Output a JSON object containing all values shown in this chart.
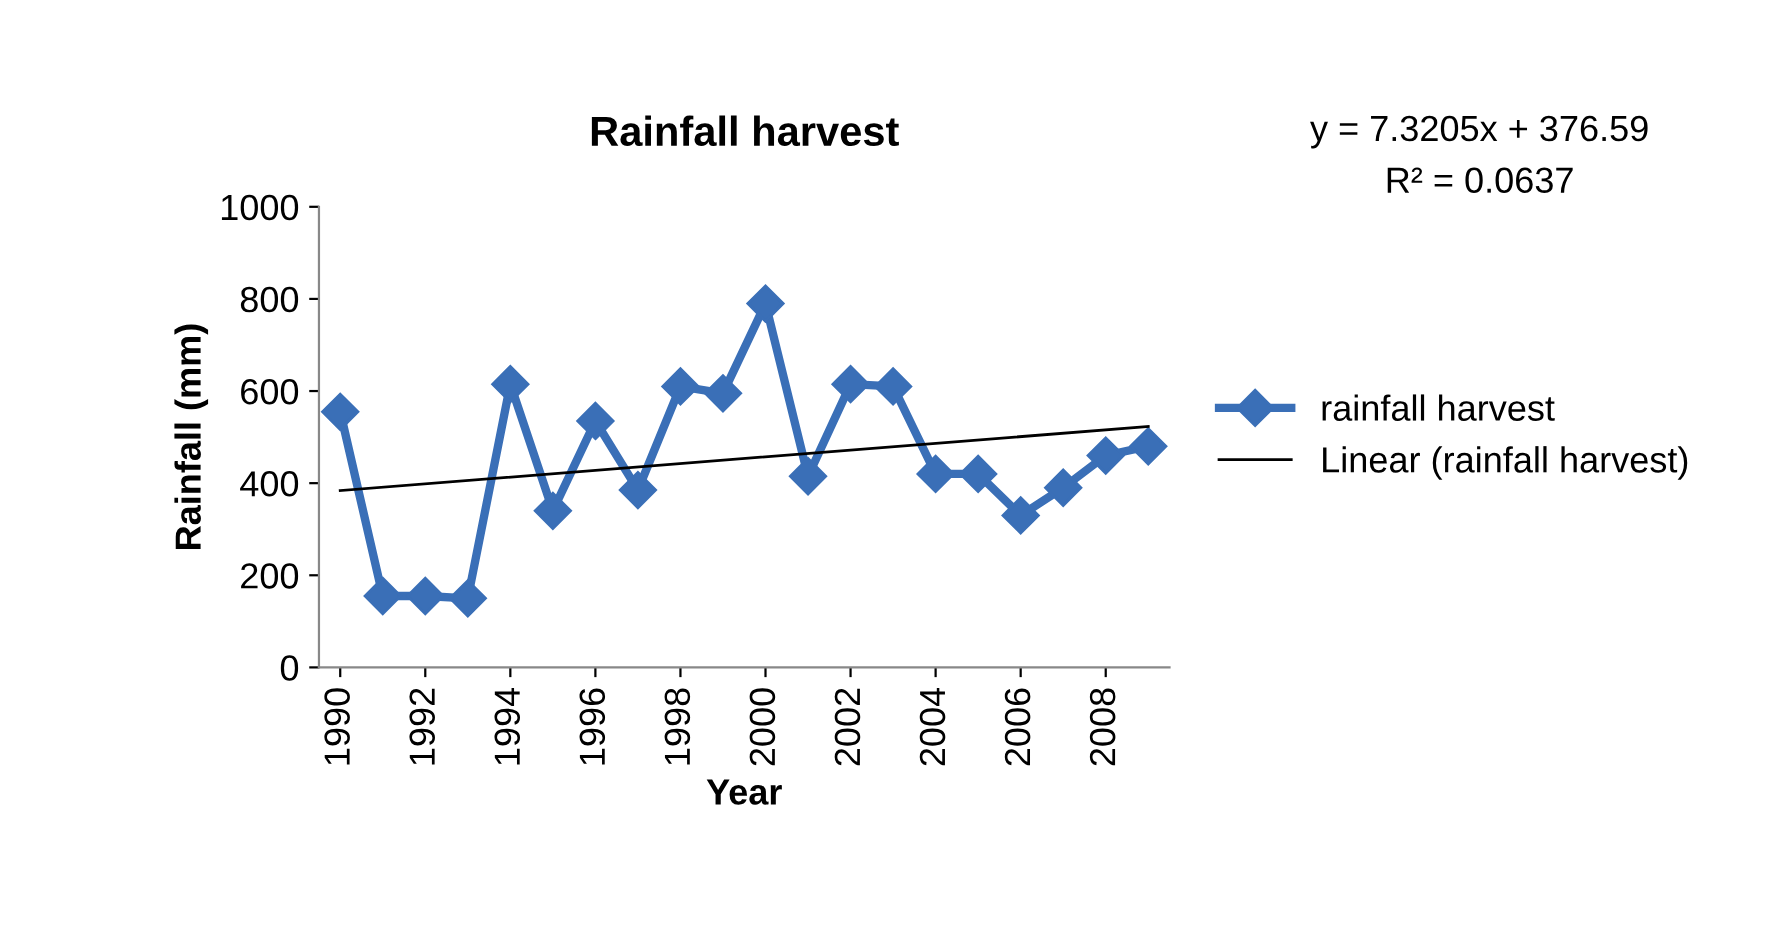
{
  "chart_data": {
    "type": "line",
    "title": "Rainfall harvest",
    "xlabel": "Year",
    "ylabel": "Rainfall (mm)",
    "x": [
      1990,
      1991,
      1992,
      1993,
      1994,
      1995,
      1996,
      1997,
      1998,
      1999,
      2000,
      2001,
      2002,
      2003,
      2004,
      2005,
      2006,
      2007,
      2008,
      2009
    ],
    "series": [
      {
        "name": "rainfall harvest",
        "color": "#3a6fb7",
        "marker": "diamond",
        "values": [
          555,
          155,
          155,
          150,
          615,
          340,
          535,
          385,
          610,
          595,
          790,
          415,
          615,
          610,
          420,
          420,
          330,
          390,
          460,
          480
        ]
      },
      {
        "name": "Linear (rainfall harvest)",
        "color": "#000000",
        "marker": "none",
        "x": [
          1990,
          2009
        ],
        "values": [
          383.9,
          523.0
        ]
      }
    ],
    "xlim": [
      1989.5,
      2009.5
    ],
    "xticks": [
      1990,
      1992,
      1994,
      1996,
      1998,
      2000,
      2002,
      2004,
      2006,
      2008
    ],
    "ylim": [
      0,
      1000
    ],
    "yticks": [
      0,
      200,
      400,
      600,
      800,
      1000
    ],
    "annotations": [
      "y = 7.3205x + 376.59",
      "R² = 0.0637"
    ],
    "grid": false,
    "legend": "right"
  }
}
